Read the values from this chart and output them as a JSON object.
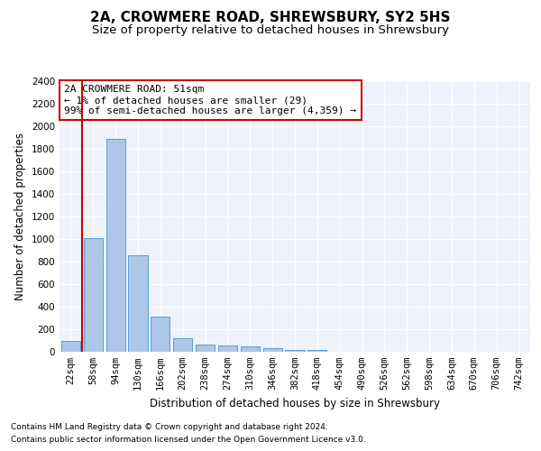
{
  "title": "2A, CROWMERE ROAD, SHREWSBURY, SY2 5HS",
  "subtitle": "Size of property relative to detached houses in Shrewsbury",
  "xlabel": "Distribution of detached houses by size in Shrewsbury",
  "ylabel": "Number of detached properties",
  "bar_labels": [
    "22sqm",
    "58sqm",
    "94sqm",
    "130sqm",
    "166sqm",
    "202sqm",
    "238sqm",
    "274sqm",
    "310sqm",
    "346sqm",
    "382sqm",
    "418sqm",
    "454sqm",
    "490sqm",
    "526sqm",
    "562sqm",
    "598sqm",
    "634sqm",
    "670sqm",
    "706sqm",
    "742sqm"
  ],
  "bar_values": [
    100,
    1010,
    1890,
    860,
    315,
    120,
    65,
    55,
    45,
    30,
    20,
    20,
    0,
    0,
    0,
    0,
    0,
    0,
    0,
    0,
    0
  ],
  "bar_color": "#aec6e8",
  "bar_edge_color": "#5a9fd4",
  "highlight_color": "#cc0000",
  "ylim": [
    0,
    2400
  ],
  "yticks": [
    0,
    200,
    400,
    600,
    800,
    1000,
    1200,
    1400,
    1600,
    1800,
    2000,
    2200,
    2400
  ],
  "annotation_text": "2A CROWMERE ROAD: 51sqm\n← 1% of detached houses are smaller (29)\n99% of semi-detached houses are larger (4,359) →",
  "annotation_box_color": "#cc0000",
  "footer_line1": "Contains HM Land Registry data © Crown copyright and database right 2024.",
  "footer_line2": "Contains public sector information licensed under the Open Government Licence v3.0.",
  "bg_color": "#eef3fb",
  "grid_color": "#ffffff",
  "title_fontsize": 11,
  "subtitle_fontsize": 9.5,
  "axis_label_fontsize": 8.5,
  "tick_fontsize": 7.5,
  "annotation_fontsize": 8,
  "footer_fontsize": 6.5
}
